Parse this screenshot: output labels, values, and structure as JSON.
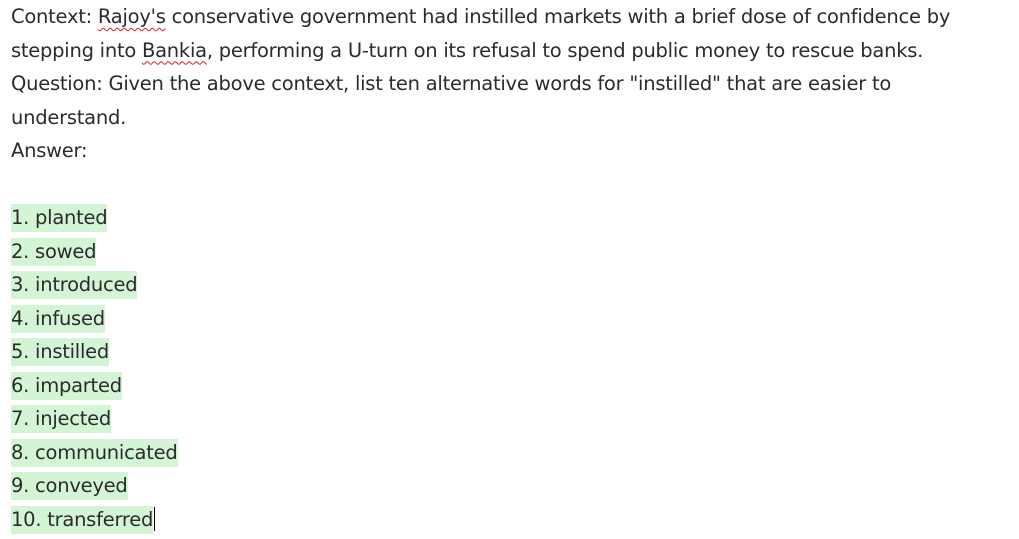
{
  "context": {
    "label": "Context:",
    "name1": "Rajoy's",
    "part1": "conservative government had instilled markets with a brief dose of confidence by",
    "part2_start": "stepping into",
    "name2": "Bankia",
    "part2_end": ", performing a U-turn on its refusal to spend public money to rescue banks."
  },
  "question": {
    "line1": "Question: Given the above context, list ten alternative words for \"instilled\" that are easier to",
    "line2": "understand."
  },
  "answer": {
    "label": "Answer:",
    "items": [
      "1. planted",
      "2. sowed",
      "3. introduced",
      "4. infused",
      "5. instilled",
      "6. imparted",
      "7. injected",
      "8. communicated",
      "9. conveyed",
      "10. transferred"
    ]
  },
  "colors": {
    "highlight": "#d4f4d6",
    "spellcheck_underline": "#d21f1f",
    "text": "#2b2b2b"
  }
}
